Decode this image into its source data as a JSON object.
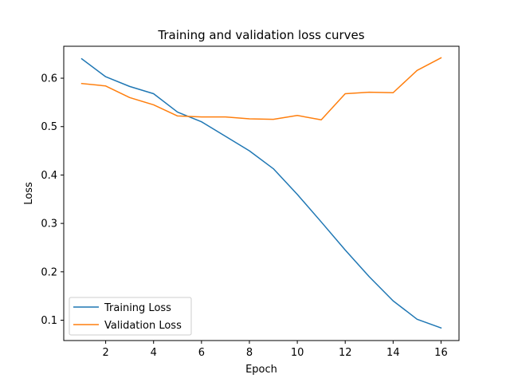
{
  "chart_data": {
    "type": "line",
    "title": "Training and validation loss curves",
    "xlabel": "Epoch",
    "ylabel": "Loss",
    "xlim": [
      0.25,
      16.75
    ],
    "ylim": [
      0.058,
      0.666
    ],
    "x_ticks": [
      2,
      4,
      6,
      8,
      10,
      12,
      14,
      16
    ],
    "y_ticks": [
      0.1,
      0.2,
      0.3,
      0.4,
      0.5,
      0.6
    ],
    "x": [
      1,
      2,
      3,
      4,
      5,
      6,
      7,
      8,
      9,
      10,
      11,
      12,
      13,
      14,
      15,
      16
    ],
    "grid": false,
    "legend_placement": "lower-left",
    "series": [
      {
        "name": "Training Loss",
        "color": "#1f77b4",
        "values": [
          0.64,
          0.603,
          0.583,
          0.568,
          0.53,
          0.51,
          0.48,
          0.45,
          0.413,
          0.36,
          0.303,
          0.245,
          0.19,
          0.14,
          0.102,
          0.084
        ]
      },
      {
        "name": "Validation Loss",
        "color": "#ff7f0e",
        "values": [
          0.589,
          0.584,
          0.56,
          0.545,
          0.522,
          0.52,
          0.52,
          0.516,
          0.515,
          0.523,
          0.514,
          0.568,
          0.571,
          0.57,
          0.616,
          0.642
        ]
      }
    ]
  }
}
